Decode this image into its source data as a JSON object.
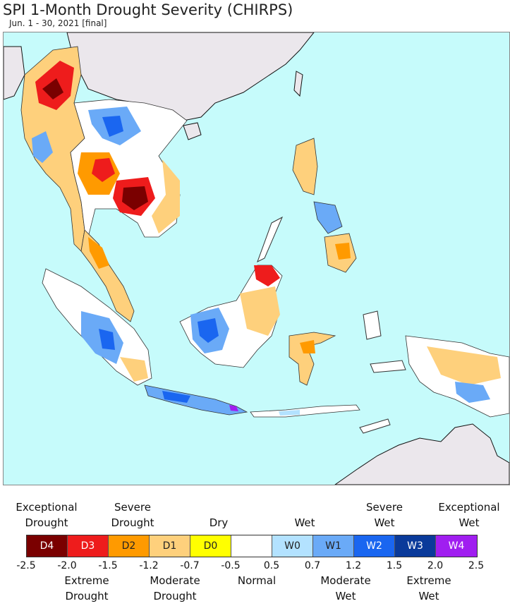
{
  "title": "SPI 1-Month Drought Severity (CHIRPS)",
  "subtitle": "Jun. 1 - 30, 2021 [final]",
  "colors": {
    "ocean": "#c6fbfb",
    "land_other": "#ebe7ec",
    "border": "#9a9a9a"
  },
  "legend": {
    "categories": [
      {
        "code": "D4",
        "color": "#7a0000",
        "text_color": "#ffffff"
      },
      {
        "code": "D3",
        "color": "#ee1c1c",
        "text_color": "#ffffff"
      },
      {
        "code": "D2",
        "color": "#ff9a00",
        "text_color": "#222222"
      },
      {
        "code": "D1",
        "color": "#fed07c",
        "text_color": "#222222"
      },
      {
        "code": "D0",
        "color": "#ffff00",
        "text_color": "#222222"
      },
      {
        "code": "",
        "color": "#ffffff",
        "text_color": "#222222"
      },
      {
        "code": "W0",
        "color": "#b3e2ff",
        "text_color": "#222222"
      },
      {
        "code": "W1",
        "color": "#6aaaf7",
        "text_color": "#222222"
      },
      {
        "code": "W2",
        "color": "#1a66f0",
        "text_color": "#ffffff"
      },
      {
        "code": "W3",
        "color": "#0a3a9a",
        "text_color": "#ffffff"
      },
      {
        "code": "W4",
        "color": "#a01ef0",
        "text_color": "#ffffff"
      }
    ],
    "ticks": [
      "-2.5",
      "-2.0",
      "-1.5",
      "-1.2",
      "-0.7",
      "-0.5",
      "0.5",
      "0.7",
      "1.2",
      "1.5",
      "2.0",
      "2.5"
    ],
    "top_labels": {
      "exceptional_drought": [
        "Exceptional",
        "Drought"
      ],
      "severe_drought": [
        "Severe",
        "Drought"
      ],
      "dry": [
        "Dry"
      ],
      "wet": [
        "Wet"
      ],
      "severe_wet": [
        "Severe",
        "Wet"
      ],
      "exceptional_wet": [
        "Exceptional",
        "Wet"
      ]
    },
    "bottom_labels": {
      "extreme_drought": [
        "Extreme",
        "Drought"
      ],
      "moderate_drought": [
        "Moderate",
        "Drought"
      ],
      "normal": [
        "Normal"
      ],
      "moderate_wet": [
        "Moderate",
        "Wet"
      ],
      "extreme_wet": [
        "Extreme",
        "Wet"
      ]
    }
  }
}
